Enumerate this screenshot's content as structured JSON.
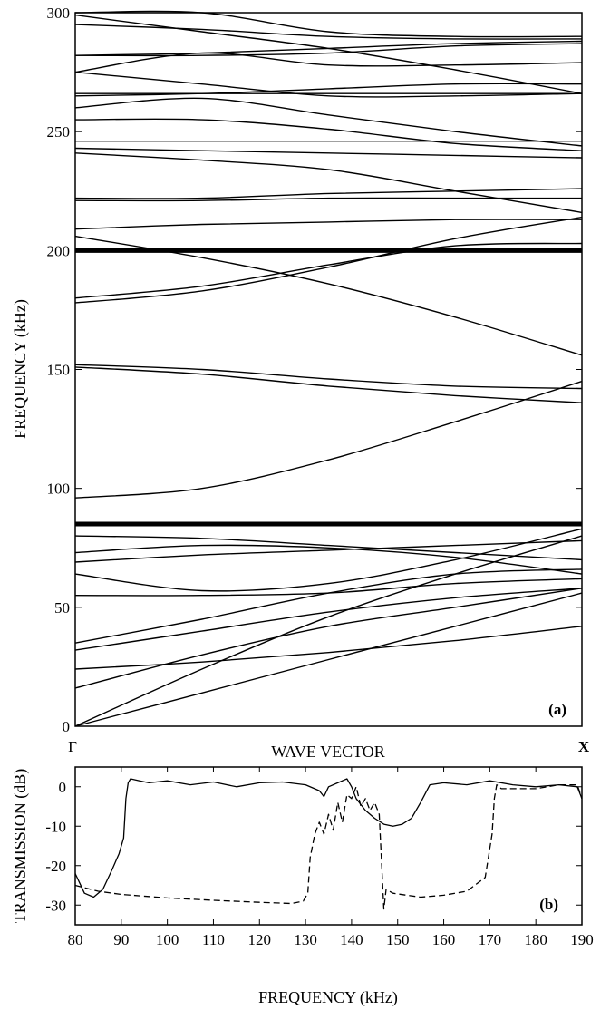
{
  "chart_data": [
    {
      "type": "line",
      "panel_label": "(a)",
      "xlabel": "WAVE VECTOR",
      "ylabel": "FREQUENCY (kHz)",
      "x_tick_labels": [
        "Γ",
        "X"
      ],
      "x": [
        0,
        0.25,
        0.5,
        0.75,
        1
      ],
      "ylim": [
        0,
        300
      ],
      "y_ticks": [
        0,
        50,
        100,
        150,
        200,
        250,
        300
      ],
      "grid": false,
      "flat_bands": [
        {
          "name": "",
          "values": [
            85,
            85,
            85,
            85,
            85
          ]
        },
        {
          "name": "",
          "values": [
            200,
            200,
            200,
            200,
            200
          ]
        }
      ],
      "series": [
        {
          "values": [
            0,
            14,
            28,
            42,
            56
          ]
        },
        {
          "values": [
            0,
            24,
            46,
            64,
            80
          ]
        },
        {
          "values": [
            16,
            30,
            42,
            50,
            58
          ]
        },
        {
          "values": [
            24,
            27,
            31,
            36,
            42
          ]
        },
        {
          "values": [
            32,
            40,
            48,
            54,
            58
          ]
        },
        {
          "values": [
            35,
            45,
            56,
            64,
            66
          ]
        },
        {
          "values": [
            55,
            55,
            56,
            60,
            62
          ]
        },
        {
          "values": [
            64,
            57,
            60,
            70,
            83
          ]
        },
        {
          "values": [
            69,
            72,
            74,
            76,
            78
          ]
        },
        {
          "values": [
            73,
            76,
            75,
            71,
            64
          ]
        },
        {
          "values": [
            80,
            79,
            76,
            73,
            70
          ]
        },
        {
          "values": [
            96,
            100,
            112,
            128,
            145
          ]
        },
        {
          "values": [
            152,
            150,
            146,
            143,
            142
          ]
        },
        {
          "values": [
            151,
            148,
            143,
            139,
            136
          ]
        },
        {
          "values": [
            178,
            183,
            193,
            205,
            214
          ]
        },
        {
          "values": [
            180,
            185,
            194,
            202,
            203
          ]
        },
        {
          "values": [
            206,
            197,
            186,
            172,
            156
          ]
        },
        {
          "values": [
            209,
            211,
            212,
            213,
            213
          ]
        },
        {
          "values": [
            221,
            221,
            222,
            222,
            222
          ]
        },
        {
          "values": [
            222,
            222,
            224,
            225,
            226
          ]
        },
        {
          "values": [
            241,
            238,
            234,
            225,
            216
          ]
        },
        {
          "values": [
            243,
            242,
            241,
            240,
            239
          ]
        },
        {
          "values": [
            246,
            246,
            246,
            246,
            246
          ]
        },
        {
          "values": [
            255,
            255,
            251,
            245,
            242
          ]
        },
        {
          "values": [
            260,
            264,
            257,
            250,
            244
          ]
        },
        {
          "values": [
            265,
            266,
            268,
            270,
            270
          ]
        },
        {
          "values": [
            266,
            266,
            266,
            266,
            266
          ]
        },
        {
          "values": [
            275,
            270,
            265,
            265,
            266
          ]
        },
        {
          "values": [
            275,
            283,
            278,
            278,
            279
          ]
        },
        {
          "values": [
            282,
            283,
            285,
            287,
            288
          ]
        },
        {
          "values": [
            282,
            282,
            283,
            286,
            287
          ]
        },
        {
          "values": [
            295,
            293,
            290,
            289,
            289
          ]
        },
        {
          "values": [
            299,
            292,
            285,
            276,
            266
          ]
        },
        {
          "values": [
            300,
            300,
            292,
            290,
            290
          ]
        }
      ]
    },
    {
      "type": "line",
      "panel_label": "(b)",
      "xlabel": "FREQUENCY (kHz)",
      "ylabel": "TRANSMISSION (dB)",
      "xlim": [
        80,
        190
      ],
      "ylim": [
        -35,
        5
      ],
      "x_ticks": [
        80,
        90,
        100,
        110,
        120,
        130,
        140,
        150,
        160,
        170,
        180,
        190
      ],
      "y_ticks": [
        0,
        -10,
        -20,
        -30
      ],
      "grid": false,
      "series": [
        {
          "name": "",
          "style": "solid",
          "x": [
            80,
            82,
            84,
            86,
            88,
            89.5,
            90.5,
            91,
            91.5,
            92,
            94,
            96,
            100,
            105,
            110,
            115,
            120,
            125,
            130,
            133,
            134,
            135,
            137,
            139,
            140,
            141,
            143,
            145,
            147,
            149,
            151,
            153,
            155,
            157,
            160,
            165,
            170,
            175,
            180,
            185,
            189,
            190
          ],
          "y": [
            -22,
            -27,
            -28,
            -26,
            -21,
            -17,
            -13,
            -3,
            1,
            2,
            1.5,
            1,
            1.5,
            0.5,
            1.2,
            0,
            1,
            1.2,
            0.5,
            -1,
            -2.5,
            0,
            1,
            2,
            0,
            -3,
            -6,
            -8,
            -9.5,
            -10,
            -9.5,
            -8,
            -4,
            0.5,
            1,
            0.5,
            1.5,
            0.5,
            0,
            0.5,
            0,
            -3
          ]
        },
        {
          "name": "",
          "style": "dashed",
          "x": [
            80,
            85,
            90,
            100,
            110,
            120,
            127,
            129.5,
            130.5,
            131,
            132,
            133,
            134,
            135,
            136,
            137,
            138,
            139,
            140,
            141,
            142,
            143,
            144,
            145,
            146,
            146.7,
            147,
            147.5,
            149,
            152,
            155,
            160,
            165,
            169,
            170.5,
            171,
            171.5,
            172.5,
            175,
            180,
            185,
            189,
            190
          ],
          "y": [
            -25,
            -26.5,
            -27.3,
            -28.2,
            -28.8,
            -29.3,
            -29.6,
            -29,
            -27,
            -18,
            -12,
            -9,
            -12,
            -7,
            -11,
            -4,
            -9,
            -2,
            -3,
            0,
            -5,
            -3,
            -6,
            -4,
            -7,
            -24,
            -31,
            -26,
            -27,
            -27.5,
            -28,
            -27.5,
            -26.5,
            -23,
            -12,
            -3,
            0.5,
            -0.5,
            -0.5,
            -0.5,
            0.5,
            0.5,
            -3
          ]
        }
      ]
    }
  ]
}
